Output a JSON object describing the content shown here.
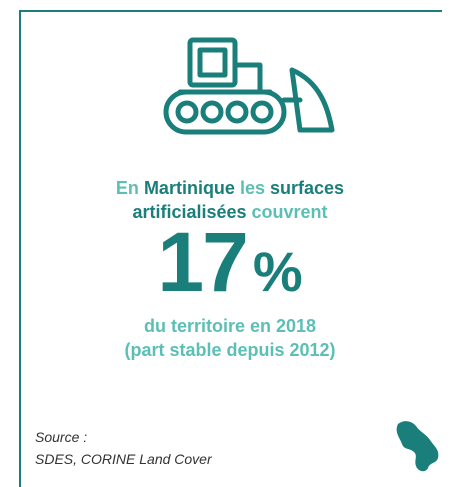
{
  "headline": [
    "En",
    "Martinique",
    "les",
    "surfaces",
    "artificialisées",
    "couvrent"
  ],
  "figure": {
    "value": 17,
    "unit": "%"
  },
  "subtext": [
    "du territoire en 2018",
    "(part stable depuis 2012)"
  ],
  "source": {
    "label": "Source :",
    "text": "SDES, CORINE Land Cover"
  }
}
